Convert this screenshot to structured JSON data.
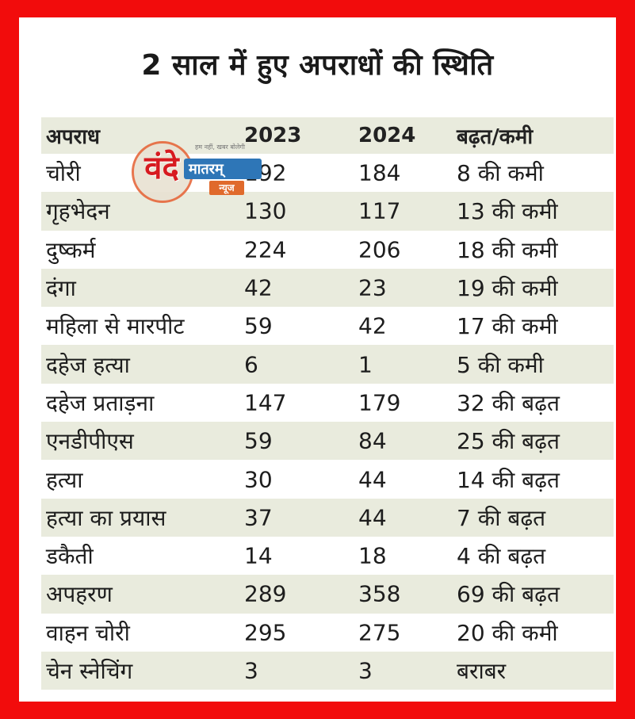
{
  "title": "2 साल में हुए अपराधों की स्थिति",
  "columns": [
    "अपराध",
    "2023",
    "2024",
    "बढ़त/कमी"
  ],
  "rows": [
    [
      "चोरी",
      "192",
      "184",
      "8 की कमी"
    ],
    [
      "गृहभेदन",
      "130",
      "117",
      "13 की कमी"
    ],
    [
      "दुष्कर्म",
      "224",
      "206",
      "18 की कमी"
    ],
    [
      "दंगा",
      "42",
      "23",
      "19 की कमी"
    ],
    [
      "महिला से मारपीट",
      "59",
      "42",
      "17 की कमी"
    ],
    [
      "दहेज हत्या",
      "6",
      "1",
      "5 की कमी"
    ],
    [
      "दहेज प्रताड़ना",
      "147",
      "179",
      "32 की बढ़त"
    ],
    [
      "एनडीपीएस",
      "59",
      "84",
      "25 की बढ़त"
    ],
    [
      "हत्या",
      "30",
      "44",
      "14 की बढ़त"
    ],
    [
      "हत्या का प्रयास",
      "37",
      "44",
      "7 की बढ़त"
    ],
    [
      "डकैती",
      "14",
      "18",
      "4 की बढ़त"
    ],
    [
      "अपहरण",
      "289",
      "358",
      "69 की बढ़त"
    ],
    [
      "वाहन चोरी",
      "295",
      "275",
      "20 की कमी"
    ],
    [
      "चेन स्नेचिंग",
      "3",
      "3",
      "बराबर"
    ]
  ],
  "watermark": {
    "ve": "वंदे",
    "mataram": "मातरम्",
    "news": "न्यूज",
    "tagline": "हम नहीं, खबर बोलेगी"
  },
  "colors": {
    "frame": "#f20c0c",
    "row_shade": "#e9ebdd",
    "logo_red": "#d71a20",
    "logo_blue": "#2e76b7",
    "logo_orange": "#e06a2c"
  }
}
